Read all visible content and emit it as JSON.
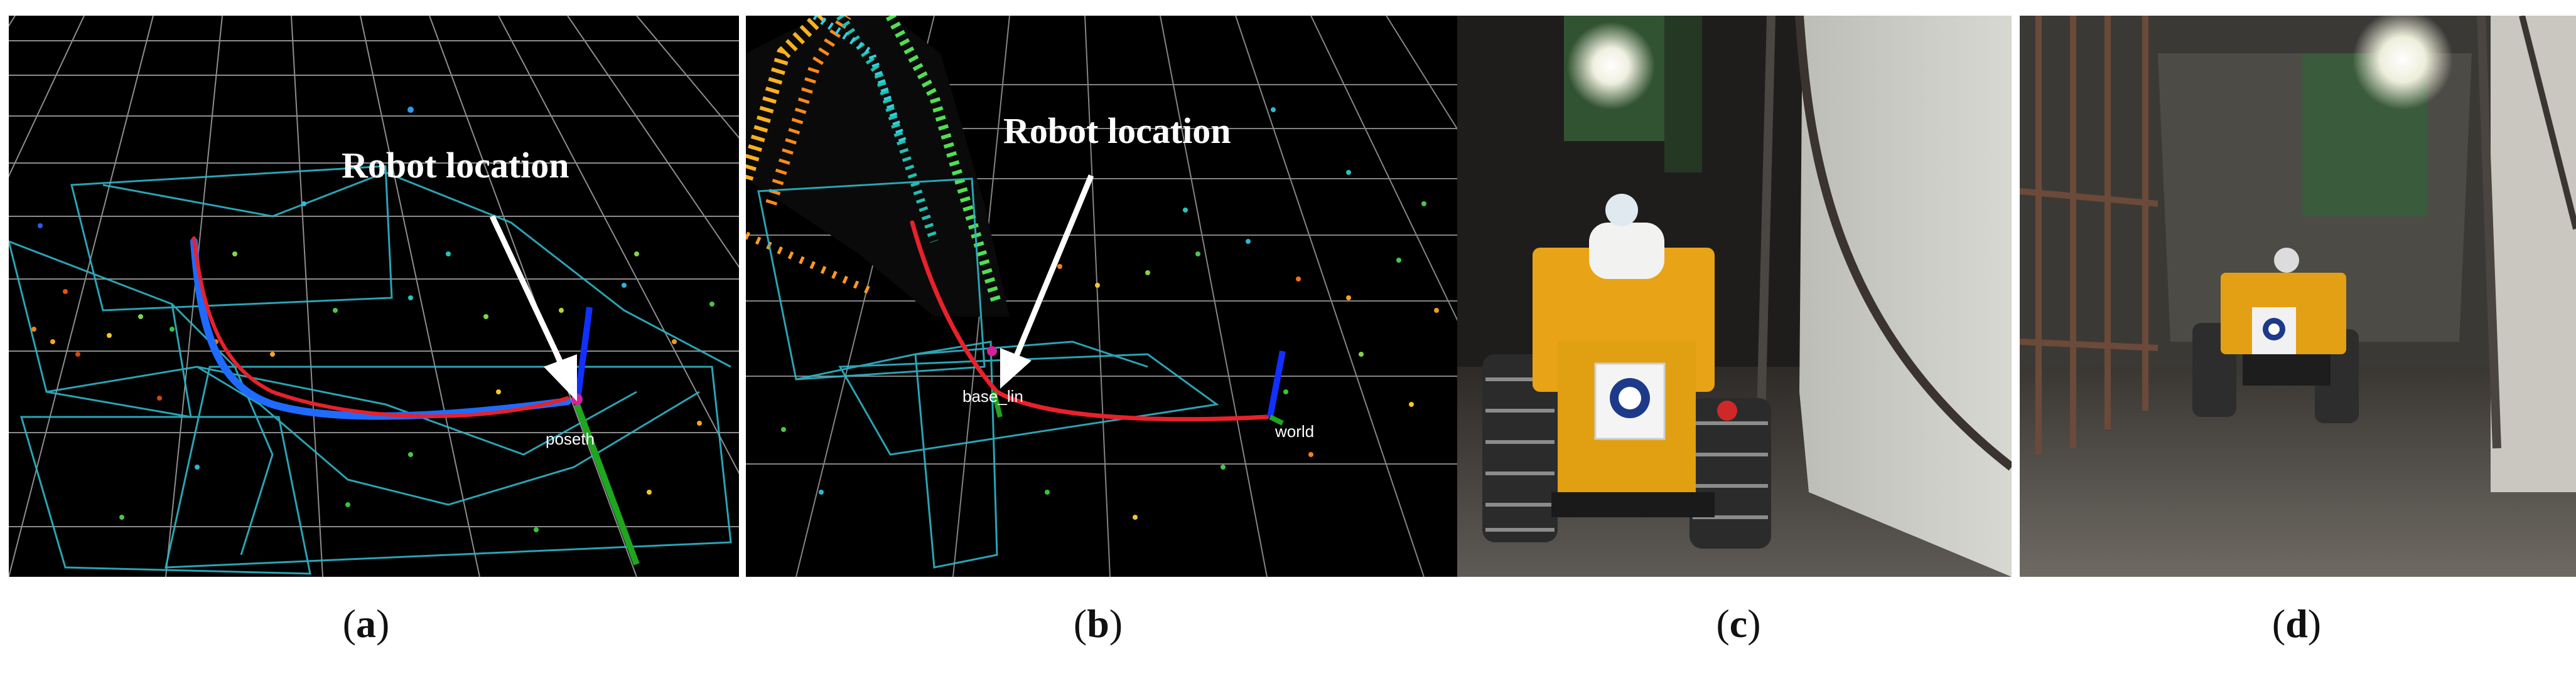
{
  "panels": {
    "a": {
      "caption_letter": "a",
      "annotation": "Robot location",
      "frame_label": "pose",
      "frame_label_overlap": "th",
      "colors": {
        "path_blue": "#1f6bff",
        "path_red": "#e8212b",
        "axis_blue": "#1030ff",
        "axis_green": "#1ea61e",
        "grid": "#c9c9c9",
        "mesh": "#33b8c9"
      }
    },
    "b": {
      "caption_letter": "b",
      "annotation": "Robot location",
      "frame_label_left": "base_lin",
      "frame_label_right": "world",
      "colors": {
        "path_red": "#e8212b",
        "axis_blue": "#1030ff",
        "axis_green": "#1ea61e"
      }
    },
    "c": {
      "caption_letter": "c"
    },
    "d": {
      "caption_letter": "d"
    }
  }
}
